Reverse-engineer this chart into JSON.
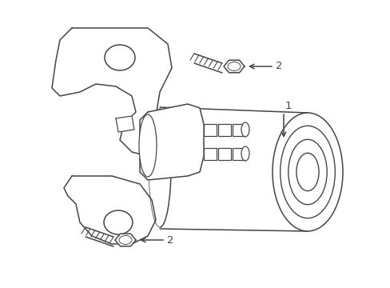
{
  "background_color": "#ffffff",
  "line_color": "#444444",
  "line_width": 1.1,
  "label_1": "1",
  "label_2": "2",
  "figsize": [
    4.89,
    3.6
  ],
  "dpi": 100,
  "xlim": [
    0,
    489
  ],
  "ylim": [
    0,
    360
  ]
}
